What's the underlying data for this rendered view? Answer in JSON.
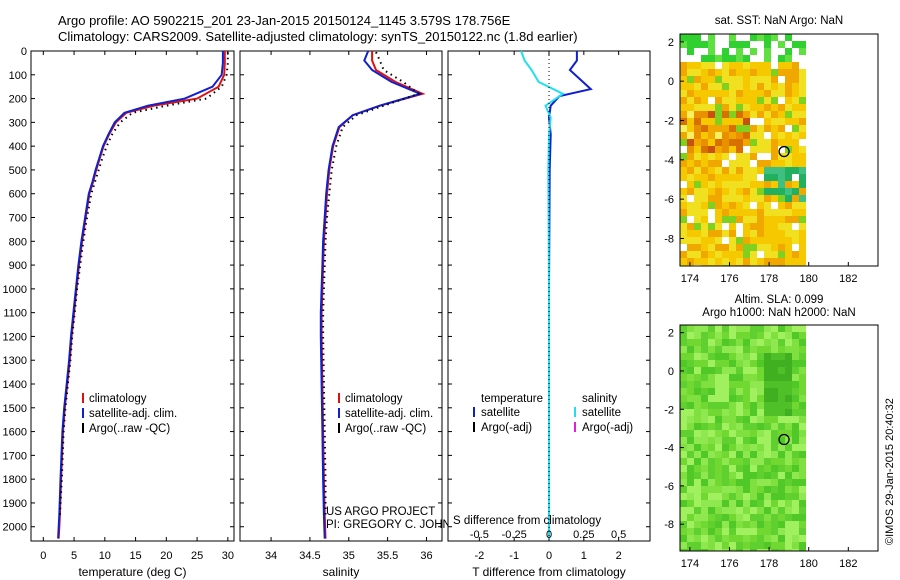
{
  "header": {
    "line1": "Argo profile: AO 5902215_201 23-Jan-2015 20150124_1145 3.579S 178.756E",
    "line2": "Climatology: CARS2009. Satellite-adjusted climatology: synTS_20150122.nc (1.8d earlier)"
  },
  "credit": "©IMOS 29-Jan-2015 20:40:32",
  "colors": {
    "climatology": "#e01010",
    "satellite": "#1020d0",
    "argo": "#000000",
    "sal_satellite": "#20e0f0",
    "sal_argo": "#e020e0"
  },
  "chart_data": [
    {
      "type": "line",
      "name": "temperature-profile",
      "xlabel": "temperature (deg C)",
      "ylabel": "",
      "xlim": [
        -2,
        31
      ],
      "ylim": [
        2060,
        0
      ],
      "xticks": [
        "0",
        "5",
        "10",
        "15",
        "20",
        "25",
        "30"
      ],
      "yticks": [
        "0",
        "100",
        "200",
        "300",
        "400",
        "500",
        "600",
        "700",
        "800",
        "900",
        "1000",
        "1100",
        "1200",
        "1300",
        "1400",
        "1500",
        "1600",
        "1700",
        "1800",
        "1900",
        "2000"
      ],
      "legend": [
        "climatology",
        "satellite-adj. clim.",
        "Argo(..raw -QC)"
      ],
      "series": [
        {
          "name": "climatology",
          "x": [
            29.5,
            29.5,
            29.4,
            28.5,
            25.0,
            18.0,
            13.5,
            11.8,
            10.7,
            9.8,
            9.2,
            8.6,
            8.1,
            7.5,
            6.9,
            6.3,
            5.8,
            5.4,
            5.0,
            4.6,
            4.3,
            3.9,
            3.5,
            3.2,
            2.9,
            2.7,
            2.5
          ],
          "y": [
            0,
            50,
            100,
            150,
            200,
            230,
            260,
            300,
            350,
            400,
            450,
            500,
            550,
            600,
            700,
            800,
            900,
            1000,
            1100,
            1200,
            1300,
            1400,
            1500,
            1600,
            1800,
            1950,
            2050
          ]
        },
        {
          "name": "satellite-adj. clim.",
          "x": [
            29.2,
            29.2,
            29.0,
            27.5,
            23.0,
            17.0,
            13.2,
            11.6,
            10.6,
            9.7,
            9.1,
            8.5,
            8.0,
            7.4,
            6.8,
            6.2,
            5.7,
            5.3,
            4.9,
            4.5,
            4.2,
            3.8,
            3.4,
            3.1,
            2.8,
            2.6,
            2.4
          ],
          "y": [
            0,
            50,
            100,
            150,
            200,
            230,
            260,
            300,
            350,
            400,
            450,
            500,
            550,
            600,
            700,
            800,
            900,
            1000,
            1100,
            1200,
            1300,
            1400,
            1500,
            1600,
            1800,
            1950,
            2050
          ]
        },
        {
          "name": "Argo(..raw -QC)",
          "x": [
            30.0,
            30.0,
            29.8,
            29.0,
            26.5,
            20.0,
            14.5,
            12.5,
            11.2,
            10.3,
            9.6,
            9.0,
            8.4,
            7.8,
            7.1,
            6.5,
            6.0,
            5.5,
            5.1,
            4.7,
            4.4,
            4.0,
            3.6,
            3.3,
            3.0,
            2.7
          ],
          "y": [
            5,
            50,
            100,
            150,
            200,
            230,
            260,
            300,
            350,
            400,
            450,
            500,
            550,
            600,
            700,
            800,
            900,
            1000,
            1100,
            1200,
            1300,
            1400,
            1500,
            1600,
            1800,
            1950
          ]
        }
      ]
    },
    {
      "type": "line",
      "name": "salinity-profile",
      "xlabel": "salinity",
      "ylabel": "",
      "xlim": [
        33.6,
        36.2
      ],
      "ylim": [
        2060,
        0
      ],
      "xticks": [
        "34",
        "34.5",
        "35",
        "35.5",
        "36"
      ],
      "legend": [
        "climatology",
        "satellite-adj. clim.",
        "Argo(..raw -QC)"
      ],
      "annotation": [
        "US ARGO PROJECT",
        "PI: GREGORY C. JOHNSON"
      ],
      "series": [
        {
          "name": "climatology",
          "x": [
            35.3,
            35.3,
            35.35,
            35.6,
            35.95,
            35.4,
            35.05,
            34.88,
            34.8,
            34.75,
            34.72,
            34.7,
            34.68,
            34.67,
            34.66,
            34.65,
            34.65,
            34.66,
            34.67,
            34.68,
            34.69,
            34.7
          ],
          "y": [
            0,
            40,
            80,
            130,
            180,
            230,
            270,
            320,
            400,
            500,
            600,
            700,
            800,
            900,
            1000,
            1100,
            1200,
            1400,
            1600,
            1800,
            1950,
            2050
          ]
        },
        {
          "name": "satellite-adj. clim.",
          "x": [
            35.25,
            35.2,
            35.3,
            35.55,
            35.92,
            35.4,
            35.05,
            34.87,
            34.79,
            34.74,
            34.71,
            34.69,
            34.67,
            34.66,
            34.65,
            34.64,
            34.64,
            34.65,
            34.66,
            34.67,
            34.68,
            34.69
          ],
          "y": [
            0,
            40,
            80,
            130,
            180,
            230,
            270,
            320,
            400,
            500,
            600,
            700,
            800,
            900,
            1000,
            1100,
            1200,
            1400,
            1600,
            1800,
            1950,
            2050
          ]
        },
        {
          "name": "Argo(..raw -QC)",
          "x": [
            35.35,
            35.4,
            35.45,
            35.7,
            35.9,
            35.45,
            35.1,
            34.92,
            34.84,
            34.78,
            34.75,
            34.72,
            34.7,
            34.69,
            34.68,
            34.67,
            34.67,
            34.68,
            34.69,
            34.7,
            34.7
          ],
          "y": [
            5,
            40,
            80,
            130,
            180,
            230,
            270,
            320,
            400,
            500,
            600,
            700,
            800,
            900,
            1000,
            1100,
            1200,
            1400,
            1600,
            1800,
            1950
          ]
        }
      ]
    },
    {
      "type": "line",
      "name": "difference-profile",
      "xlabel": "T difference from climatology",
      "xlabel_top": "S difference from climatology",
      "ylabel": "",
      "xlim": [
        -2.9,
        2.9
      ],
      "ylim": [
        2060,
        0
      ],
      "xticks": [
        "-2",
        "-1",
        "0",
        "1",
        "2"
      ],
      "xticks_top": [
        "-0.5",
        "-0.25",
        "0",
        "0.25",
        "0.5"
      ],
      "legend_left_title": "temperature",
      "legend_left": [
        "satellite",
        "Argo(-adj)"
      ],
      "legend_right_title": "salinity",
      "legend_right": [
        "satellite",
        "Argo(-adj)"
      ],
      "series": [
        {
          "name": "temperature satellite",
          "x": [
            0.8,
            0.8,
            0.6,
            1.2,
            0.3,
            0.05,
            0.0,
            0.05,
            0.02,
            0.0,
            0.0
          ],
          "y": [
            0,
            40,
            80,
            160,
            190,
            230,
            280,
            350,
            500,
            1000,
            2050
          ]
        },
        {
          "name": "salinity satellite",
          "x": [
            -0.8,
            -0.7,
            -0.5,
            -0.3,
            0.4,
            -0.1,
            0.05,
            0.0,
            -0.02,
            0.0,
            0.0
          ],
          "y": [
            0,
            40,
            80,
            130,
            180,
            230,
            280,
            350,
            500,
            1000,
            2050
          ]
        }
      ]
    },
    {
      "type": "heatmap",
      "name": "sst-map",
      "title": "sat. SST: NaN Argo: NaN",
      "xticks": [
        "174",
        "176",
        "178",
        "180",
        "182"
      ],
      "yticks": [
        "2",
        "0",
        "-2",
        "-4",
        "-6",
        "-8"
      ],
      "xlim": [
        173.5,
        183.5
      ],
      "ylim": [
        -9.4,
        2.4
      ],
      "marker": {
        "lon": 178.756,
        "lat": -3.579
      }
    },
    {
      "type": "heatmap",
      "name": "sla-map",
      "title": "Altim. SLA: 0.099",
      "subtitle": "Argo h1000: NaN h2000: NaN",
      "xticks": [
        "174",
        "176",
        "178",
        "180",
        "182"
      ],
      "yticks": [
        "2",
        "0",
        "-2",
        "-4",
        "-6",
        "-8"
      ],
      "xlim": [
        173.5,
        183.5
      ],
      "ylim": [
        -9.4,
        2.4
      ],
      "marker": {
        "lon": 178.756,
        "lat": -3.579
      }
    }
  ]
}
